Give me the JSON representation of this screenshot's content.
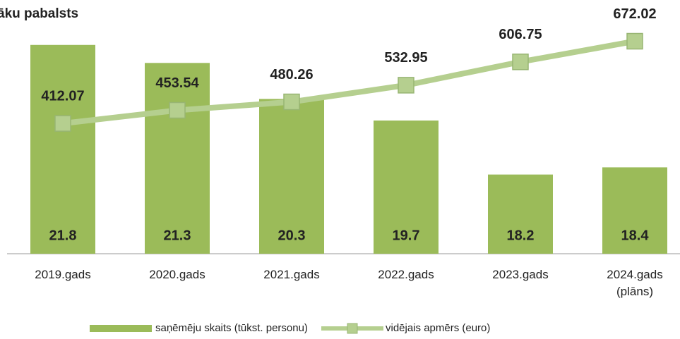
{
  "chart_data": {
    "type": "bar-line",
    "title": "āku pabalsts",
    "categories": [
      "2019.gads",
      "2020.gads",
      "2021.gads",
      "2022.gads",
      "2023.gads",
      "2024.gads\n(plāns)"
    ],
    "ylim": [
      16,
      22.5
    ],
    "y2lim": [
      0,
      740
    ],
    "series": [
      {
        "name": "saņēmēju skaits (tūkst. personu)",
        "type": "bar",
        "color": "#9bbb59",
        "values": [
          21.8,
          21.3,
          20.3,
          19.7,
          18.2,
          18.4
        ]
      },
      {
        "name": "vidējais apmērs (euro)",
        "type": "line",
        "axis": "y2",
        "color": "#b5cf8f",
        "values": [
          412.07,
          453.54,
          480.26,
          532.95,
          606.75,
          672.02
        ]
      }
    ]
  }
}
